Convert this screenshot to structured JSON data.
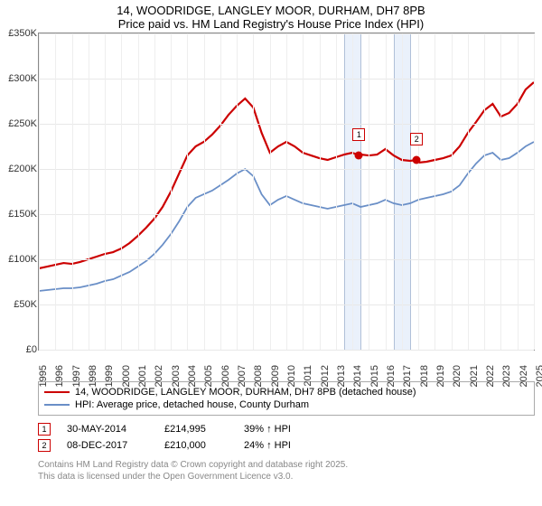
{
  "title": {
    "line1": "14, WOODRIDGE, LANGLEY MOOR, DURHAM, DH7 8PB",
    "line2": "Price paid vs. HM Land Registry's House Price Index (HPI)"
  },
  "chart": {
    "type": "line",
    "background_color": "#ffffff",
    "grid_color": "#e8e8e8",
    "axis_color": "#888888",
    "font_size_axis": 11,
    "x_range": [
      1995,
      2025
    ],
    "y_range": [
      0,
      350000
    ],
    "y_ticks": [
      0,
      50000,
      100000,
      150000,
      200000,
      250000,
      300000,
      350000
    ],
    "y_tick_labels": [
      "£0",
      "£50K",
      "£100K",
      "£150K",
      "£200K",
      "£250K",
      "£300K",
      "£350K"
    ],
    "x_ticks": [
      1995,
      1996,
      1997,
      1998,
      1999,
      2000,
      2001,
      2002,
      2003,
      2004,
      2005,
      2006,
      2007,
      2008,
      2009,
      2010,
      2011,
      2012,
      2013,
      2014,
      2015,
      2016,
      2017,
      2018,
      2019,
      2020,
      2021,
      2022,
      2023,
      2024,
      2025
    ],
    "shaded_bands": [
      {
        "from": 2013.5,
        "to": 2014.5,
        "fill": "#eaf1fb",
        "border": "#b0c0d8"
      },
      {
        "from": 2016.5,
        "to": 2017.5,
        "fill": "#eaf1fb",
        "border": "#b0c0d8"
      }
    ],
    "series": [
      {
        "id": "property",
        "label": "14, WOODRIDGE, LANGLEY MOOR, DURHAM, DH7 8PB (detached house)",
        "color": "#cc0000",
        "line_width": 2.2,
        "data": [
          [
            1995,
            90000
          ],
          [
            1995.5,
            92000
          ],
          [
            1996,
            94000
          ],
          [
            1996.5,
            96000
          ],
          [
            1997,
            95000
          ],
          [
            1997.5,
            97000
          ],
          [
            1998,
            100000
          ],
          [
            1998.5,
            103000
          ],
          [
            1999,
            106000
          ],
          [
            1999.5,
            108000
          ],
          [
            2000,
            112000
          ],
          [
            2000.5,
            118000
          ],
          [
            2001,
            126000
          ],
          [
            2001.5,
            135000
          ],
          [
            2002,
            145000
          ],
          [
            2002.5,
            158000
          ],
          [
            2003,
            175000
          ],
          [
            2003.5,
            195000
          ],
          [
            2004,
            215000
          ],
          [
            2004.5,
            225000
          ],
          [
            2005,
            230000
          ],
          [
            2005.5,
            238000
          ],
          [
            2006,
            248000
          ],
          [
            2006.5,
            260000
          ],
          [
            2007,
            270000
          ],
          [
            2007.5,
            278000
          ],
          [
            2008,
            268000
          ],
          [
            2008.5,
            240000
          ],
          [
            2009,
            218000
          ],
          [
            2009.5,
            225000
          ],
          [
            2010,
            230000
          ],
          [
            2010.5,
            225000
          ],
          [
            2011,
            218000
          ],
          [
            2011.5,
            215000
          ],
          [
            2012,
            212000
          ],
          [
            2012.5,
            210000
          ],
          [
            2013,
            213000
          ],
          [
            2013.5,
            216000
          ],
          [
            2014,
            218000
          ],
          [
            2014.4,
            214995
          ],
          [
            2014.5,
            216000
          ],
          [
            2015,
            215000
          ],
          [
            2015.5,
            216000
          ],
          [
            2016,
            222000
          ],
          [
            2016.5,
            215000
          ],
          [
            2017,
            210000
          ],
          [
            2017.5,
            209000
          ],
          [
            2017.9,
            210000
          ],
          [
            2018,
            207000
          ],
          [
            2018.5,
            208000
          ],
          [
            2019,
            210000
          ],
          [
            2019.5,
            212000
          ],
          [
            2020,
            215000
          ],
          [
            2020.5,
            225000
          ],
          [
            2021,
            240000
          ],
          [
            2021.5,
            252000
          ],
          [
            2022,
            265000
          ],
          [
            2022.5,
            272000
          ],
          [
            2023,
            258000
          ],
          [
            2023.5,
            262000
          ],
          [
            2024,
            272000
          ],
          [
            2024.5,
            288000
          ],
          [
            2025,
            296000
          ]
        ]
      },
      {
        "id": "hpi",
        "label": "HPI: Average price, detached house, County Durham",
        "color": "#6a8fc7",
        "line_width": 1.8,
        "data": [
          [
            1995,
            65000
          ],
          [
            1995.5,
            66000
          ],
          [
            1996,
            67000
          ],
          [
            1996.5,
            68000
          ],
          [
            1997,
            68000
          ],
          [
            1997.5,
            69000
          ],
          [
            1998,
            71000
          ],
          [
            1998.5,
            73000
          ],
          [
            1999,
            76000
          ],
          [
            1999.5,
            78000
          ],
          [
            2000,
            82000
          ],
          [
            2000.5,
            86000
          ],
          [
            2001,
            92000
          ],
          [
            2001.5,
            98000
          ],
          [
            2002,
            106000
          ],
          [
            2002.5,
            116000
          ],
          [
            2003,
            128000
          ],
          [
            2003.5,
            142000
          ],
          [
            2004,
            158000
          ],
          [
            2004.5,
            168000
          ],
          [
            2005,
            172000
          ],
          [
            2005.5,
            176000
          ],
          [
            2006,
            182000
          ],
          [
            2006.5,
            188000
          ],
          [
            2007,
            195000
          ],
          [
            2007.5,
            200000
          ],
          [
            2008,
            192000
          ],
          [
            2008.5,
            172000
          ],
          [
            2009,
            160000
          ],
          [
            2009.5,
            166000
          ],
          [
            2010,
            170000
          ],
          [
            2010.5,
            166000
          ],
          [
            2011,
            162000
          ],
          [
            2011.5,
            160000
          ],
          [
            2012,
            158000
          ],
          [
            2012.5,
            156000
          ],
          [
            2013,
            158000
          ],
          [
            2013.5,
            160000
          ],
          [
            2014,
            162000
          ],
          [
            2014.5,
            158000
          ],
          [
            2015,
            160000
          ],
          [
            2015.5,
            162000
          ],
          [
            2016,
            166000
          ],
          [
            2016.5,
            162000
          ],
          [
            2017,
            160000
          ],
          [
            2017.5,
            162000
          ],
          [
            2018,
            166000
          ],
          [
            2018.5,
            168000
          ],
          [
            2019,
            170000
          ],
          [
            2019.5,
            172000
          ],
          [
            2020,
            175000
          ],
          [
            2020.5,
            182000
          ],
          [
            2021,
            195000
          ],
          [
            2021.5,
            206000
          ],
          [
            2022,
            215000
          ],
          [
            2022.5,
            218000
          ],
          [
            2023,
            210000
          ],
          [
            2023.5,
            212000
          ],
          [
            2024,
            218000
          ],
          [
            2024.5,
            225000
          ],
          [
            2025,
            230000
          ]
        ]
      }
    ],
    "sale_markers": [
      {
        "n": "1",
        "x": 2014.4,
        "y": 214995,
        "color": "#cc0000",
        "box_color": "#cc0000"
      },
      {
        "n": "2",
        "x": 2017.9,
        "y": 210000,
        "color": "#cc0000",
        "box_color": "#cc0000"
      }
    ]
  },
  "legend": {
    "border_color": "#aaaaaa",
    "font_size": 11,
    "rows": [
      {
        "color": "#cc0000",
        "width": 2.5,
        "label": "14, WOODRIDGE, LANGLEY MOOR, DURHAM, DH7 8PB (detached house)"
      },
      {
        "color": "#6a8fc7",
        "width": 2,
        "label": "HPI: Average price, detached house, County Durham"
      }
    ]
  },
  "sales": [
    {
      "n": "1",
      "date": "30-MAY-2014",
      "price": "£214,995",
      "hpi": "39% ↑ HPI"
    },
    {
      "n": "2",
      "date": "08-DEC-2017",
      "price": "£210,000",
      "hpi": "24% ↑ HPI"
    }
  ],
  "footer": {
    "line1": "Contains HM Land Registry data © Crown copyright and database right 2025.",
    "line2": "This data is licensed under the Open Government Licence v3.0."
  }
}
